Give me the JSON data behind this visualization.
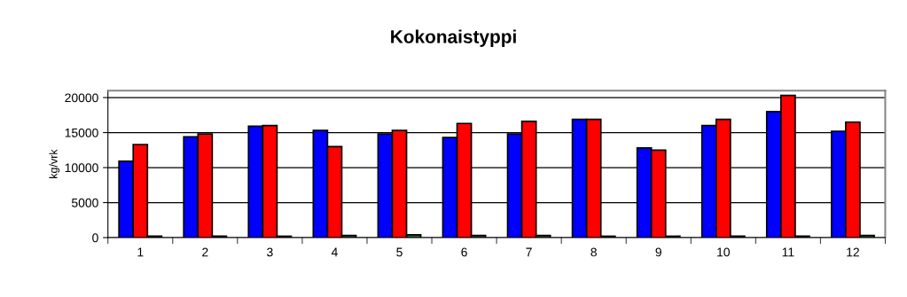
{
  "chart_data": {
    "type": "bar",
    "title": "Kokonaistyppi",
    "ylabel": "kg/vrk",
    "categories": [
      "1",
      "2",
      "3",
      "4",
      "5",
      "6",
      "7",
      "8",
      "9",
      "10",
      "11",
      "12"
    ],
    "series": [
      {
        "color": "#0000ff",
        "values": [
          10900,
          14400,
          15900,
          15300,
          14800,
          14300,
          14800,
          16900,
          12800,
          16000,
          18000,
          15200
        ]
      },
      {
        "color": "#ff0000",
        "values": [
          13300,
          14800,
          16000,
          13000,
          15300,
          16300,
          16600,
          16900,
          12500,
          16900,
          20300,
          16500
        ]
      },
      {
        "color": "#336633",
        "values": [
          200,
          200,
          200,
          300,
          400,
          300,
          300,
          200,
          200,
          200,
          200,
          300
        ]
      }
    ],
    "ylim": [
      0,
      21000
    ],
    "yticks": [
      0,
      5000,
      10000,
      15000,
      20000
    ],
    "grid": "y",
    "legend": false
  }
}
